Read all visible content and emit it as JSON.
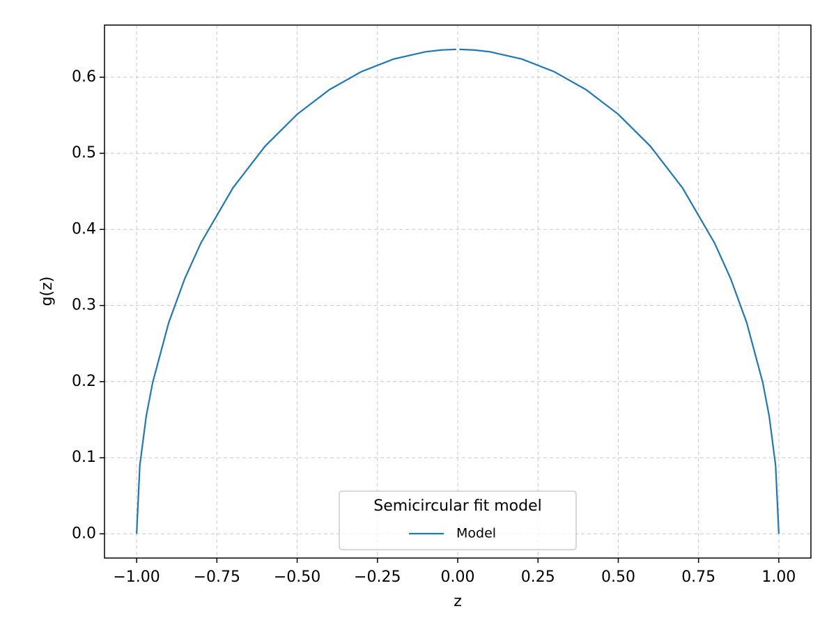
{
  "chart_data": {
    "type": "line",
    "x_label": "z",
    "y_label": "g(z)",
    "x": [
      -1,
      -0.99,
      -0.97,
      -0.95,
      -0.9,
      -0.85,
      -0.8,
      -0.7,
      -0.6,
      -0.5,
      -0.4,
      -0.3,
      -0.2,
      -0.1,
      -0.05,
      -0.005,
      0,
      0.005,
      0.05,
      0.1,
      0.2,
      0.3,
      0.4,
      0.5,
      0.6,
      0.7,
      0.8,
      0.85,
      0.9,
      0.95,
      0.97,
      0.99,
      1
    ],
    "series": [
      {
        "name": "Model",
        "color": "#1f77b4",
        "values": [
          0,
          0.0898,
          0.1548,
          0.1988,
          0.2775,
          0.3354,
          0.382,
          0.4546,
          0.5093,
          0.5513,
          0.5835,
          0.6073,
          0.6238,
          0.6334,
          0.6358,
          0.6366,
          null,
          0.6366,
          0.6358,
          0.6334,
          0.6238,
          0.6073,
          0.5835,
          0.5513,
          0.5093,
          0.4546,
          0.382,
          0.3354,
          0.2775,
          0.1988,
          0.1548,
          0.0898,
          0
        ]
      }
    ],
    "legend_title": "Semicircular fit model",
    "legend_position": "lower center",
    "xlim": [
      -1.1,
      1.1
    ],
    "xticks": [
      {
        "value": -1,
        "label": "−1.00"
      },
      {
        "value": -0.75,
        "label": "−0.75"
      },
      {
        "value": -0.5,
        "label": "−0.50"
      },
      {
        "value": -0.25,
        "label": "−0.25"
      },
      {
        "value": 0,
        "label": "0.00"
      },
      {
        "value": 0.25,
        "label": "0.25"
      },
      {
        "value": 0.5,
        "label": "0.50"
      },
      {
        "value": 0.75,
        "label": "0.75"
      },
      {
        "value": 1,
        "label": "1.00"
      }
    ],
    "ylim": [
      -0.0318,
      0.6685
    ],
    "yticks": [
      {
        "value": 0,
        "label": "0.0"
      },
      0.1,
      0.2,
      0.3,
      0.4,
      0.5,
      0.6
    ],
    "grid": true
  }
}
